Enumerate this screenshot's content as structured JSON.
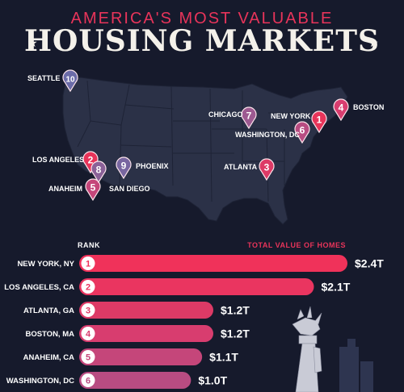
{
  "header": {
    "subtitle": "AMERICA'S MOST VALUABLE",
    "title": "HOUSING MARKETS",
    "star_icon": "star-icon"
  },
  "map": {
    "markers": [
      {
        "rank": "1",
        "label": "NEW YORK",
        "color": "#e8345a"
      },
      {
        "rank": "2",
        "label": "LOS ANGELES",
        "color": "#e8345a"
      },
      {
        "rank": "3",
        "label": "ATLANTA",
        "color": "#dd3a66"
      },
      {
        "rank": "4",
        "label": "BOSTON",
        "color": "#d83d6f"
      },
      {
        "rank": "5",
        "label": "ANAHEIM",
        "color": "#c5467a"
      },
      {
        "rank": "6",
        "label": "WASHINGTON, DC",
        "color": "#b84c82"
      },
      {
        "rank": "7",
        "label": "CHICAGO",
        "color": "#9d5a91"
      },
      {
        "rank": "8",
        "label": "SAN DIEGO",
        "color": "#8b6198"
      },
      {
        "rank": "9",
        "label": "PHOENIX",
        "color": "#7866a0"
      },
      {
        "rank": "10",
        "label": "SEATTLE",
        "color": "#6b6ba8"
      }
    ]
  },
  "chart_data": {
    "type": "bar",
    "orientation": "horizontal",
    "rank_header": "RANK",
    "value_header": "TOTAL VALUE OF HOMES",
    "categories": [
      "NEW YORK, NY",
      "LOS ANGELES, CA",
      "ATLANTA, GA",
      "BOSTON, MA",
      "ANAHEIM, CA",
      "WASHINGTON, DC"
    ],
    "ranks": [
      "1",
      "2",
      "3",
      "4",
      "5",
      "6"
    ],
    "values": [
      2.4,
      2.1,
      1.2,
      1.2,
      1.1,
      1.0
    ],
    "value_labels": [
      "$2.4T",
      "$2.1T",
      "$1.2T",
      "$1.2T",
      "$1.1T",
      "$1.0T"
    ],
    "unit": "trillion USD",
    "bar_colors": [
      "#f0325a",
      "#ea3560",
      "#dd3a66",
      "#d83d6f",
      "#c5467a",
      "#b84c82"
    ],
    "xlim": [
      0,
      2.4
    ],
    "grid": false
  },
  "colors": {
    "background": "#161a2c",
    "map_fill": "#2b3147",
    "map_stroke": "#161a2c",
    "accent": "#e8345a",
    "title": "#f4f1ea"
  }
}
